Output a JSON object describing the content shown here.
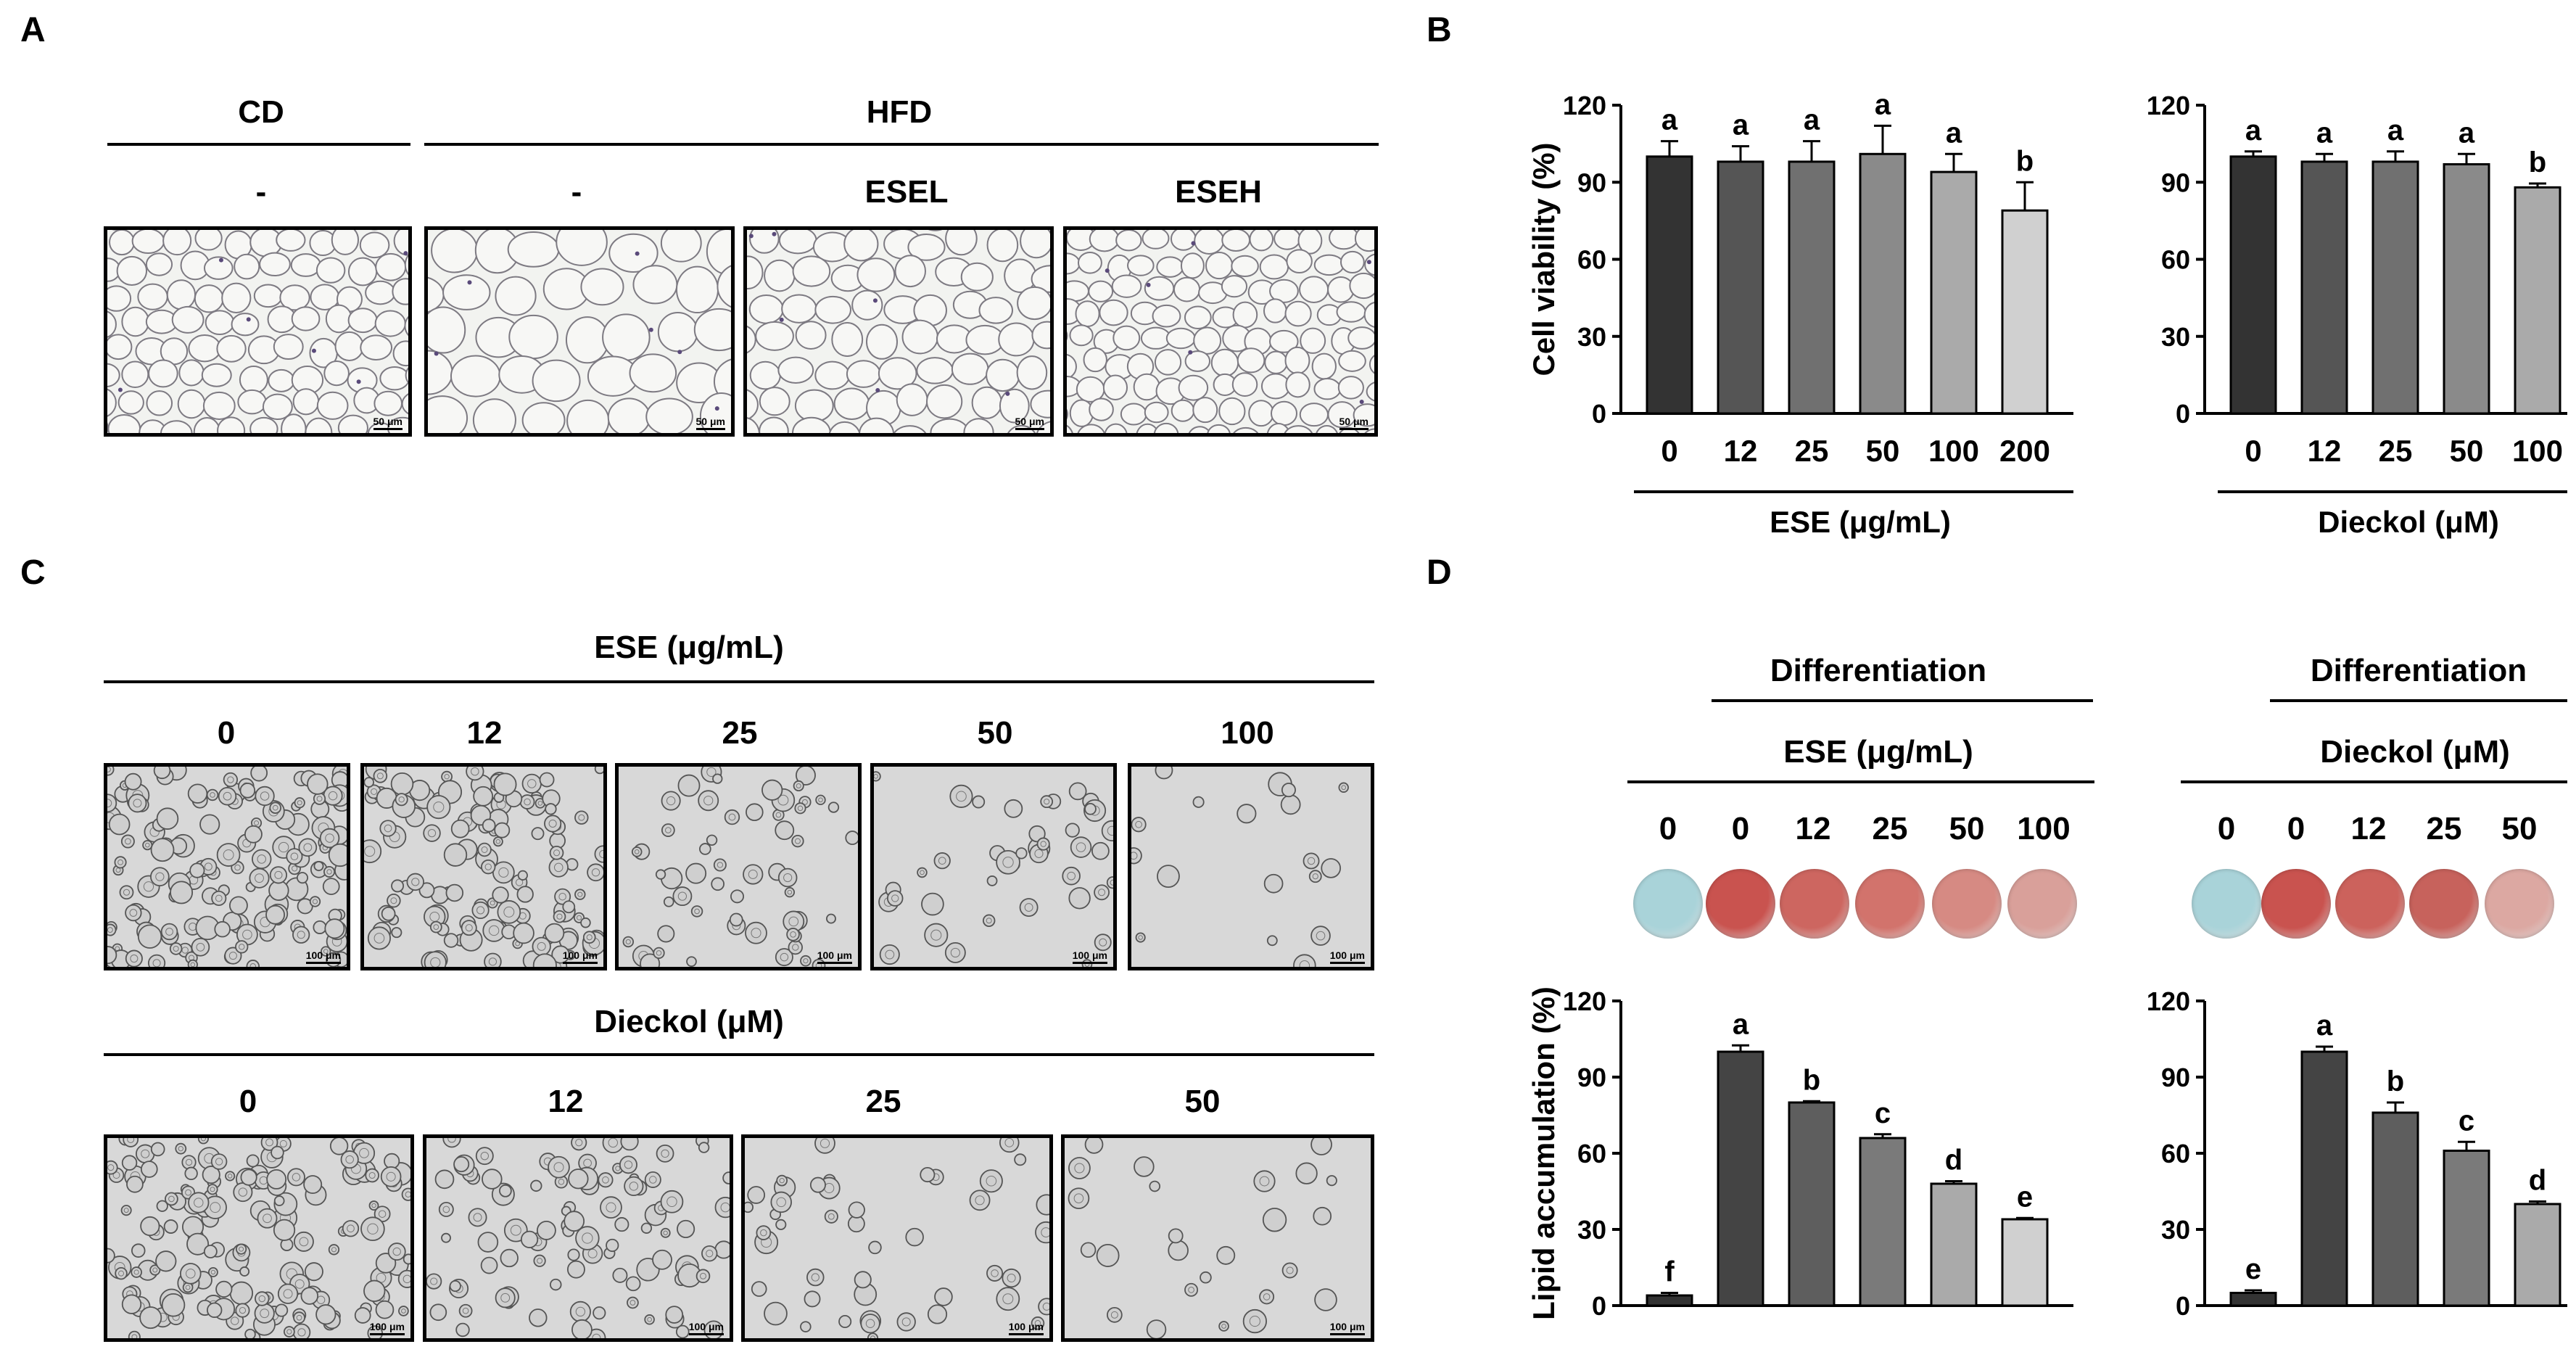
{
  "panels": {
    "A": "A",
    "B": "B",
    "C": "C",
    "D": "D"
  },
  "panelA": {
    "group_cd": "CD",
    "group_hfd": "HFD",
    "treatments": [
      "-",
      "-",
      "ESEL",
      "ESEH"
    ],
    "scale_label": "50 μm"
  },
  "panelC": {
    "ese_title": "ESE (μg/mL)",
    "ese_doses": [
      "0",
      "12",
      "25",
      "50",
      "100"
    ],
    "dieckol_title": "Dieckol (μM)",
    "dieckol_doses": [
      "0",
      "12",
      "25",
      "50"
    ],
    "scale_label": "100 μm"
  },
  "panelD": {
    "differentiation_label": "Differentiation",
    "ese_title": "ESE (μg/mL)",
    "ese_doses": [
      "0",
      "0",
      "12",
      "25",
      "50",
      "100"
    ],
    "dieckol_title": "Dieckol (μM)",
    "dieckol_doses": [
      "0",
      "0",
      "12",
      "25",
      "50"
    ],
    "well_colors_ese": [
      "#a9d3d9",
      "#c9534f",
      "#cd6660",
      "#d2736c",
      "#d68a83",
      "#d9a09a"
    ],
    "well_colors_dieckol": [
      "#a9d3d9",
      "#c9534f",
      "#cc625c",
      "#c7625c",
      "#dca8a2"
    ]
  },
  "chart_data": [
    {
      "id": "B-ESE",
      "type": "bar",
      "ylabel": "Cell viability (%)",
      "xlabel": "ESE (μg/mL)",
      "categories": [
        "0",
        "12",
        "25",
        "50",
        "100",
        "200"
      ],
      "values": [
        100,
        98,
        98,
        101,
        94,
        79
      ],
      "errors": [
        6,
        6,
        8,
        11,
        7,
        11
      ],
      "letters": [
        "a",
        "a",
        "a",
        "a",
        "a",
        "b"
      ],
      "colors": [
        "#333333",
        "#555555",
        "#707070",
        "#8a8a8a",
        "#aaaaaa",
        "#d0d0d0"
      ],
      "ylim": [
        0,
        120
      ],
      "yticks": [
        0,
        30,
        60,
        90,
        120
      ]
    },
    {
      "id": "B-Dieckol",
      "type": "bar",
      "ylabel": "",
      "xlabel": "Dieckol (μM)",
      "categories": [
        "0",
        "12",
        "25",
        "50",
        "100"
      ],
      "values": [
        100,
        98,
        98,
        97,
        88
      ],
      "errors": [
        2,
        3,
        4,
        4,
        1.5
      ],
      "letters": [
        "a",
        "a",
        "a",
        "a",
        "b"
      ],
      "colors": [
        "#333333",
        "#555555",
        "#707070",
        "#8a8a8a",
        "#aaaaaa"
      ],
      "ylim": [
        0,
        120
      ],
      "yticks": [
        0,
        30,
        60,
        90,
        120
      ]
    },
    {
      "id": "D-ESE",
      "type": "bar",
      "ylabel": "Lipid accumulation (%)",
      "xlabel": "",
      "categories": [
        "0",
        "0",
        "12",
        "25",
        "50",
        "100"
      ],
      "values": [
        4,
        100,
        80,
        66,
        48,
        34
      ],
      "errors": [
        1,
        2.5,
        0.5,
        1.5,
        1,
        0.5
      ],
      "letters": [
        "f",
        "a",
        "b",
        "c",
        "d",
        "e"
      ],
      "colors": [
        "#333333",
        "#444444",
        "#5e5e5e",
        "#7a7a7a",
        "#aaaaaa",
        "#d0d0d0"
      ],
      "ylim": [
        0,
        120
      ],
      "yticks": [
        0,
        30,
        60,
        90,
        120
      ]
    },
    {
      "id": "D-Dieckol",
      "type": "bar",
      "ylabel": "",
      "xlabel": "",
      "categories": [
        "0",
        "0",
        "12",
        "25",
        "50"
      ],
      "values": [
        5,
        100,
        76,
        61,
        40
      ],
      "errors": [
        1,
        2,
        4,
        3.5,
        1
      ],
      "letters": [
        "e",
        "a",
        "b",
        "c",
        "d"
      ],
      "colors": [
        "#333333",
        "#444444",
        "#5e5e5e",
        "#7a7a7a",
        "#aaaaaa"
      ],
      "ylim": [
        0,
        120
      ],
      "yticks": [
        0,
        30,
        60,
        90,
        120
      ]
    }
  ]
}
